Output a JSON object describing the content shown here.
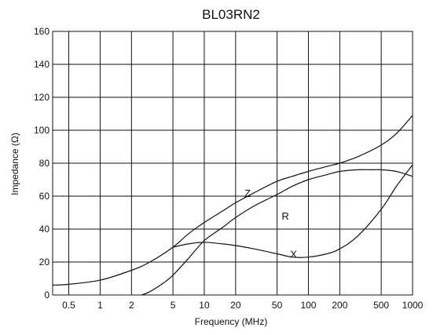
{
  "chart_data": {
    "type": "line",
    "title": "BL03RN2",
    "xlabel": "Frequency (MHz)",
    "ylabel": "Impedance (Ω)",
    "xscale": "log",
    "xlim": [
      0.35,
      1000
    ],
    "ylim": [
      0,
      160
    ],
    "grid": true,
    "x_ticks": [
      0.5,
      1,
      2,
      5,
      10,
      20,
      50,
      100,
      200,
      500,
      1000
    ],
    "x_tick_labels": [
      "0.5",
      "1",
      "2",
      "5",
      "10",
      "20",
      "50",
      "100",
      "200",
      "500",
      "1000"
    ],
    "y_ticks": [
      0,
      20,
      40,
      60,
      80,
      100,
      120,
      140,
      160
    ],
    "y_tick_labels": [
      "0",
      "20",
      "40",
      "60",
      "80",
      "100",
      "120",
      "140",
      "160"
    ],
    "series": [
      {
        "name": "Z",
        "x": [
          0.35,
          0.5,
          1,
          2,
          3,
          5,
          7,
          10,
          15,
          20,
          30,
          50,
          70,
          100,
          150,
          200,
          300,
          500,
          700,
          1000
        ],
        "y": [
          6,
          6.5,
          9,
          15,
          20,
          29,
          37,
          44,
          51,
          56,
          62,
          69,
          72,
          75,
          78,
          80,
          84,
          91,
          98,
          109
        ]
      },
      {
        "name": "R",
        "x": [
          2.5,
          3,
          4,
          5,
          7,
          10,
          15,
          20,
          30,
          50,
          70,
          100,
          150,
          200,
          300,
          400,
          500,
          700,
          1000
        ],
        "y": [
          0,
          2,
          7,
          12,
          22,
          33,
          41,
          47,
          54,
          61,
          66,
          70,
          73,
          75,
          76,
          76,
          76,
          75,
          72
        ]
      },
      {
        "name": "X",
        "x": [
          5,
          7,
          10,
          15,
          20,
          30,
          50,
          70,
          100,
          150,
          200,
          300,
          500,
          700,
          1000
        ],
        "y": [
          29,
          31,
          32,
          31,
          30,
          28,
          25,
          23,
          23,
          25,
          28,
          36,
          52,
          66,
          79
        ]
      }
    ],
    "annotations": [
      {
        "text": "Z",
        "x": 26,
        "y": 62
      },
      {
        "text": "R",
        "x": 60,
        "y": 48
      },
      {
        "text": "X",
        "x": 72,
        "y": 25
      }
    ]
  }
}
